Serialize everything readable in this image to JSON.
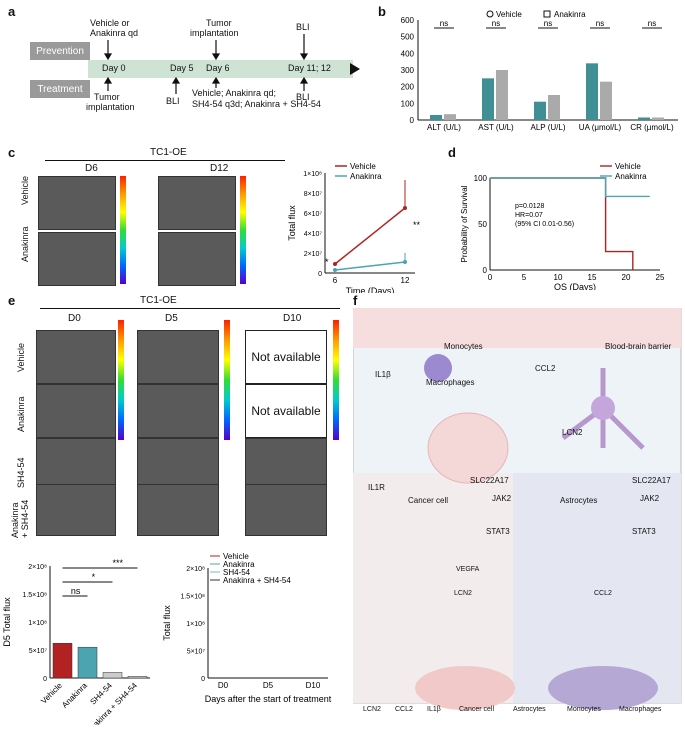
{
  "panels": {
    "a": "a",
    "b": "b",
    "c": "c",
    "d": "d",
    "e": "e",
    "f": "f"
  },
  "timeline": {
    "rows": [
      "Prevention",
      "Treatment"
    ],
    "days": [
      "Day 0",
      "Day 5",
      "Day 6",
      "Day 11; 12"
    ],
    "top_notes": [
      "Vehicle or",
      "Anakinra qd",
      "Tumor",
      "implantation",
      "BLI"
    ],
    "bottom_notes": [
      "Tumor",
      "implantation",
      "BLI",
      "Vehicle; Anakinra qd;",
      "SH4-54 q3d; Anakinra + SH4-54",
      "BLI"
    ]
  },
  "panel_b": {
    "legend": [
      "Vehicle",
      "Anakinra"
    ],
    "chart_data": {
      "type": "bar",
      "categories": [
        "ALT (U/L)",
        "AST (U/L)",
        "ALP (U/L)",
        "UA (μmol/L)",
        "CR (μmol/L)"
      ],
      "series": [
        {
          "name": "Vehicle",
          "values": [
            30,
            250,
            110,
            340,
            15
          ]
        },
        {
          "name": "Anakinra",
          "values": [
            35,
            300,
            150,
            230,
            15
          ]
        }
      ],
      "significance": [
        "ns",
        "ns",
        "ns",
        "ns",
        "ns"
      ],
      "yticks": [
        "0",
        "100",
        "200",
        "300",
        "400",
        "500",
        "600"
      ],
      "ylim": [
        0,
        600
      ],
      "colors": {
        "Vehicle": "#3f8f94",
        "Anakinra": "#aaaaaa"
      }
    }
  },
  "panel_c": {
    "model": "TC1-OE",
    "cols": [
      "D6",
      "D12"
    ],
    "rows": [
      "Vehicle",
      "Anakinra"
    ],
    "chart_data": {
      "type": "line",
      "x": [
        6,
        12
      ],
      "series": [
        {
          "name": "Vehicle",
          "values": [
            9000000,
            65000000
          ],
          "err": [
            2000000,
            28000000
          ],
          "color": "#b22222"
        },
        {
          "name": "Anakinra",
          "values": [
            3000000,
            11000000
          ],
          "err": [
            1000000,
            9000000
          ],
          "color": "#4aa5b0"
        }
      ],
      "xlabel": "Time (Days)",
      "ylabel": "Total flux",
      "yticks": [
        "0",
        "2×10⁷",
        "4×10⁷",
        "6×10⁷",
        "8×10⁷",
        "1×10⁸"
      ],
      "ylim": [
        0,
        100000000
      ],
      "sig": [
        "*",
        "**"
      ]
    }
  },
  "panel_d": {
    "chart_data": {
      "type": "line",
      "series": [
        {
          "name": "Vehicle",
          "x": [
            0,
            17,
            17,
            21,
            21
          ],
          "y": [
            100,
            100,
            20,
            20,
            0
          ],
          "color": "#b22222"
        },
        {
          "name": "Anakinra",
          "x": [
            0,
            17,
            17,
            23.5
          ],
          "y": [
            100,
            100,
            80,
            80
          ],
          "color": "#4aa5b0"
        }
      ],
      "xlabel": "OS (Days)",
      "ylabel": "Probability of Survival",
      "xticks": [
        "0",
        "5",
        "10",
        "15",
        "20",
        "25"
      ],
      "yticks": [
        "0",
        "50",
        "100"
      ],
      "xlim": [
        0,
        25
      ],
      "ylim": [
        0,
        100
      ]
    },
    "stats": [
      "p=0.0128",
      "HR=0.07",
      "(95% CI 0.01-0.56)"
    ]
  },
  "panel_e": {
    "model": "TC1-OE",
    "cols": [
      "D0",
      "D5",
      "D10"
    ],
    "rows": [
      "Vehicle",
      "Anakinra",
      "SH4-54",
      "Anakinra\n+ SH4-54"
    ],
    "not_available": "Not available",
    "bar_chart": {
      "type": "bar",
      "categories": [
        "Vehicle",
        "Anakinra",
        "SH4-54",
        "Anakinra + SH4-54"
      ],
      "values": [
        62000000,
        55000000,
        10000000,
        3000000
      ],
      "colors": [
        "#b22222",
        "#4aa5b0",
        "#cccccc",
        "#cccccc"
      ],
      "ylabel": "D5  Total flux",
      "yticks": [
        "0",
        "5×10⁷",
        "1×10⁸",
        "1.5×10⁸",
        "2×10⁸"
      ],
      "ylim": [
        0,
        200000000
      ],
      "sig": [
        "ns",
        "*",
        "***"
      ]
    },
    "line_chart": {
      "type": "line",
      "x": [
        "D0",
        "D5",
        "D10"
      ],
      "legend": [
        "Vehicle",
        "Anakinra",
        "SH4-54",
        "Anakinra + SH4-54"
      ],
      "xlabel": "Days after the start of treatment",
      "ylabel": "Total flux",
      "yticks": [
        "0",
        "5×10⁷",
        "1×10⁸",
        "1.5×10⁸",
        "2×10⁸"
      ],
      "ylim": [
        0,
        200000000
      ]
    }
  },
  "panel_f": {
    "labels": [
      "Monocytes",
      "Blood-brain barrier",
      "CCL2",
      "IL1β",
      "Macrophages",
      "LCN2",
      "IL1R",
      "Cancer cell",
      "SLC22A17",
      "JAK2",
      "STAT3",
      "VEGFA",
      "LCN2",
      "SLC22A17",
      "Astrocytes",
      "JAK2",
      "STAT3",
      "CCL2"
    ],
    "legend": [
      "LCN2",
      "CCL2",
      "IL1β",
      "Cancer cell",
      "Astrocytes",
      "Monocytes",
      "Macrophages"
    ]
  }
}
